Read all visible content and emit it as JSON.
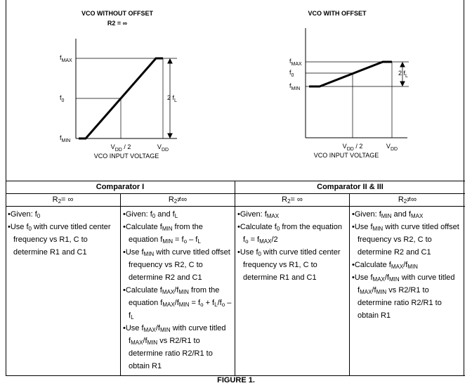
{
  "left_chart": {
    "title": "VCO WITHOUT OFFSET",
    "subtitle": "R2 = ∞",
    "y_labels": [
      [
        "f",
        {
          "sub": "MAX"
        }
      ],
      [
        "f",
        {
          "sub": "0"
        }
      ],
      [
        "f",
        {
          "sub": "MIN"
        }
      ]
    ],
    "range_label": [
      "2 f",
      {
        "sub": "L"
      }
    ],
    "x_labels": [
      [
        "V",
        {
          "sub": "DD"
        },
        " / 2"
      ],
      [
        "V",
        {
          "sub": "DD"
        }
      ]
    ],
    "x_axis_label": "VCO INPUT VOLTAGE"
  },
  "right_chart": {
    "title": "VCO WITH OFFSET",
    "y_labels": [
      [
        "f",
        {
          "sub": "MAX"
        }
      ],
      [
        "f",
        {
          "sub": "0"
        }
      ],
      [
        "f",
        {
          "sub": "MIN"
        }
      ]
    ],
    "range_label": [
      "2 f",
      {
        "sub": "L"
      }
    ],
    "x_labels": [
      [
        "V",
        {
          "sub": "DD"
        },
        " / 2"
      ],
      [
        "V",
        {
          "sub": "DD"
        }
      ]
    ],
    "x_axis_label": "VCO INPUT VOLTAGE"
  },
  "table": {
    "groups": [
      "Comparator I",
      "Comparator II & III"
    ],
    "subheaders": [
      [
        "R",
        {
          "sub": "2"
        },
        "= ∞"
      ],
      [
        "R",
        {
          "sub": "2"
        },
        "≠∞"
      ],
      [
        "R",
        {
          "sub": "2"
        },
        "= ∞"
      ],
      [
        "R",
        {
          "sub": "2"
        },
        "≠∞"
      ]
    ],
    "cells": [
      [
        [
          "•Given: f",
          {
            "sub": "0"
          }
        ],
        [
          "•Use f",
          {
            "sub": "0"
          },
          " with curve titled center frequency vs R1, C to determine R1 and C1"
        ]
      ],
      [
        [
          "•Given: f",
          {
            "sub": "0"
          },
          " and f",
          {
            "sub": "L"
          }
        ],
        [
          "•Calculate f",
          {
            "sub": "MIN"
          },
          " from the equation f",
          {
            "sub": "MIN"
          },
          " = f",
          {
            "sub": "o"
          },
          " – f",
          {
            "sub": "L"
          }
        ],
        [
          "•Use f",
          {
            "sub": "MIN"
          },
          " with curve titled offset frequency vs R2, C to determine R2 and C1"
        ],
        [
          "•Calculate f",
          {
            "sub": "MAX"
          },
          "/f",
          {
            "sub": "MIN"
          },
          " from the equation f",
          {
            "sub": "MAX"
          },
          "/f",
          {
            "sub": "MIN"
          },
          " = f",
          {
            "sub": "o"
          },
          " + f",
          {
            "sub": "L"
          },
          "/f",
          {
            "sub": "o"
          },
          " – f",
          {
            "sub": "L"
          }
        ],
        [
          "•Use f",
          {
            "sub": "MAX"
          },
          "/f",
          {
            "sub": "MIN"
          },
          " with curve titled f",
          {
            "sub": "MAX"
          },
          "/f",
          {
            "sub": "MIN"
          },
          " vs R2/R1 to determine ratio R2/R1 to obtain R1"
        ]
      ],
      [
        [
          "•Given: f",
          {
            "sub": "MAX"
          }
        ],
        [
          "•Calculate f",
          {
            "sub": "0"
          },
          " from the equation f",
          {
            "sub": "o"
          },
          " = f",
          {
            "sub": "MAX"
          },
          "/2"
        ],
        [
          "•Use f",
          {
            "sub": "0"
          },
          " with curve titled center frequency vs R1, C to determine R1 and C1"
        ]
      ],
      [
        [
          "•Given: f",
          {
            "sub": "MIN"
          },
          " and f",
          {
            "sub": "MAX"
          }
        ],
        [
          "•Use f",
          {
            "sub": "MIN"
          },
          " with curve titled offset frequency vs R2, C to determine R2 and C1"
        ],
        [
          "•Calculate f",
          {
            "sub": "MAX"
          },
          "/f",
          {
            "sub": "MIN"
          }
        ],
        [
          "•Use f",
          {
            "sub": "MAX"
          },
          "/f",
          {
            "sub": "MIN"
          },
          " with curve titled f",
          {
            "sub": "MAX"
          },
          "/f",
          {
            "sub": "MIN"
          },
          " vs R2/R1 to determine ratio R2/R1 to obtain R1"
        ]
      ]
    ]
  },
  "footer": "FIGURE 1."
}
